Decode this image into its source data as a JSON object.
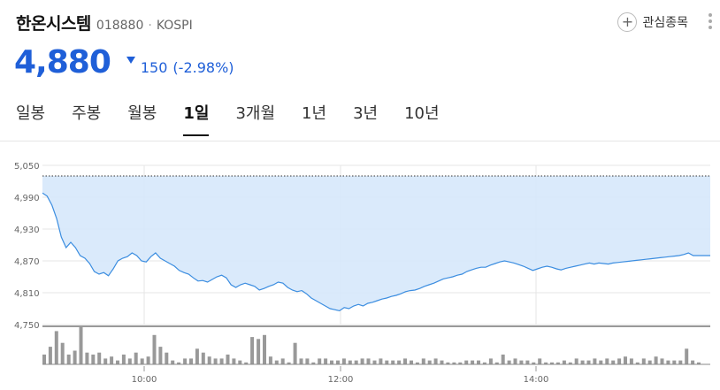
{
  "stock": {
    "name": "한온시스템",
    "code": "018880",
    "separator": "·",
    "market": "KOSPI",
    "price": "4,880",
    "change": "150",
    "change_pct": "(-2.98%)",
    "direction": "down"
  },
  "actions": {
    "watchlist_label": "관심종목",
    "plus_glyph": "+"
  },
  "tabs": [
    {
      "label": "일봉",
      "active": false
    },
    {
      "label": "주봉",
      "active": false
    },
    {
      "label": "월봉",
      "active": false
    },
    {
      "label": "1일",
      "active": true
    },
    {
      "label": "3개월",
      "active": false
    },
    {
      "label": "1년",
      "active": false
    },
    {
      "label": "3년",
      "active": false
    },
    {
      "label": "10년",
      "active": false
    }
  ],
  "colors": {
    "accent": "#1f5fd8",
    "line": "#3b8de0",
    "area": "#d6e8fb",
    "volume": "#999999"
  },
  "chart_data": {
    "type": "area",
    "y_ticks": [
      "5,050",
      "4,990",
      "4,930",
      "4,870",
      "4,810",
      "4,750"
    ],
    "ylim": [
      4750,
      5050
    ],
    "x_ticks": [
      "10:00",
      "12:00",
      "14:00"
    ],
    "previous_close": 5030,
    "price_series": [
      4998,
      4992,
      4975,
      4950,
      4915,
      4895,
      4905,
      4895,
      4880,
      4875,
      4865,
      4850,
      4845,
      4848,
      4842,
      4855,
      4870,
      4875,
      4878,
      4885,
      4880,
      4870,
      4868,
      4878,
      4885,
      4875,
      4870,
      4865,
      4860,
      4852,
      4848,
      4845,
      4838,
      4832,
      4833,
      4830,
      4835,
      4840,
      4843,
      4838,
      4825,
      4820,
      4825,
      4828,
      4825,
      4822,
      4815,
      4818,
      4822,
      4825,
      4830,
      4828,
      4820,
      4815,
      4812,
      4814,
      4808,
      4800,
      4795,
      4790,
      4785,
      4780,
      4778,
      4776,
      4782,
      4780,
      4785,
      4788,
      4785,
      4790,
      4792,
      4795,
      4798,
      4800,
      4803,
      4805,
      4808,
      4812,
      4814,
      4815,
      4818,
      4822,
      4825,
      4828,
      4832,
      4836,
      4838,
      4840,
      4843,
      4845,
      4850,
      4853,
      4856,
      4858,
      4858,
      4862,
      4865,
      4868,
      4870,
      4868,
      4866,
      4863,
      4860,
      4856,
      4852,
      4855,
      4858,
      4860,
      4858,
      4855,
      4853,
      4856,
      4858,
      4860,
      4862,
      4864,
      4866,
      4864,
      4866,
      4865,
      4864,
      4866,
      4867,
      4868,
      4869,
      4870,
      4871,
      4872,
      4873,
      4874,
      4875,
      4876,
      4877,
      4878,
      4879,
      4880,
      4882,
      4885,
      4880,
      4880,
      4880,
      4880,
      4880,
      4880,
      4880,
      4880,
      4880,
      4880,
      4880
    ],
    "volume_series": [
      10,
      18,
      34,
      22,
      10,
      14,
      38,
      12,
      10,
      12,
      6,
      8,
      4,
      10,
      6,
      12,
      6,
      8,
      30,
      18,
      12,
      4,
      2,
      6,
      6,
      16,
      12,
      8,
      6,
      6,
      10,
      6,
      4,
      2,
      28,
      26,
      30,
      8,
      4,
      6,
      2,
      22,
      6,
      6,
      2,
      6,
      6,
      4,
      4,
      6,
      4,
      4,
      6,
      6,
      4,
      6,
      4,
      4,
      4,
      6,
      4,
      2,
      6,
      4,
      6,
      4,
      2,
      2,
      2,
      4,
      4,
      4,
      2,
      6,
      2,
      10,
      4,
      6,
      4,
      4,
      2,
      6,
      2,
      2,
      2,
      4,
      2,
      6,
      4,
      4,
      6,
      4,
      6,
      4,
      6,
      8,
      6,
      2,
      6,
      4,
      8,
      6,
      4,
      4,
      4,
      16,
      4,
      2
    ]
  }
}
